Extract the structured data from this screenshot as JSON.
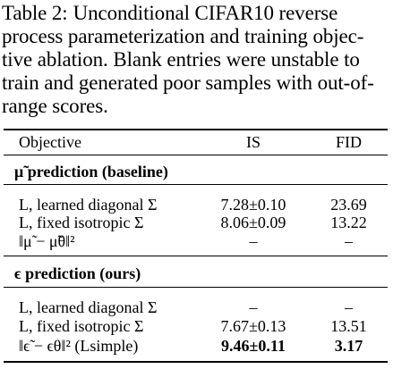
{
  "caption": {
    "label": "Table 2:",
    "lines": [
      "Unconditional CIFAR10 reverse",
      "process parameterization and training objec-",
      "tive ablation. Blank entries were unstable to",
      "train and generated poor samples with out-of-",
      "range scores."
    ]
  },
  "table": {
    "headers": {
      "objective": "Objective",
      "is": "IS",
      "fid": "FID"
    },
    "sections": [
      {
        "title": "μ̃ prediction (baseline)",
        "rows": [
          {
            "objective": "L, learned diagonal Σ",
            "is": "7.28±0.10",
            "fid": "23.69"
          },
          {
            "objective": "L, fixed isotropic Σ",
            "is": "8.06±0.09",
            "fid": "13.22"
          },
          {
            "objective": "‖μ̃ − μ̃θ‖²",
            "is": "–",
            "fid": "–"
          }
        ]
      },
      {
        "title": "ϵ prediction (ours)",
        "rows": [
          {
            "objective": "L, learned diagonal Σ",
            "is": "–",
            "fid": "–"
          },
          {
            "objective": "L, fixed isotropic Σ",
            "is": "7.67±0.13",
            "fid": "13.51"
          },
          {
            "objective": "‖ϵ̃ − ϵθ‖² (Lsimple)",
            "is": "9.46±0.11",
            "fid": "3.17"
          }
        ]
      }
    ]
  }
}
